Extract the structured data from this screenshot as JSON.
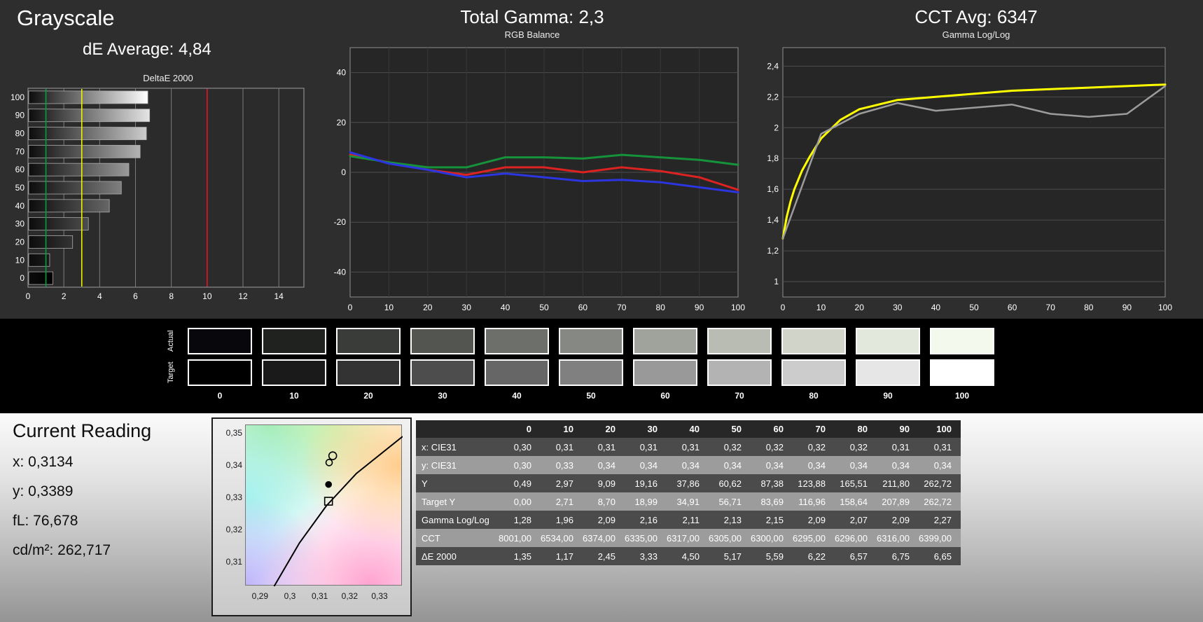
{
  "header": {
    "grayscale_title": "Grayscale",
    "de_average": "dE Average: 4,84",
    "total_gamma": "Total Gamma: 2,3",
    "cct_avg": "CCT Avg: 6347"
  },
  "chart_data": [
    {
      "id": "deltae",
      "type": "bar",
      "title": "DeltaE 2000",
      "orientation": "horizontal",
      "categories": [
        100,
        90,
        80,
        70,
        60,
        50,
        40,
        30,
        20,
        10,
        0
      ],
      "values": [
        6.65,
        6.75,
        6.57,
        6.22,
        5.59,
        5.17,
        4.5,
        3.33,
        2.45,
        1.17,
        1.35
      ],
      "xlim": [
        0,
        15.4
      ],
      "xticks": [
        0,
        2,
        4,
        6,
        8,
        10,
        12,
        14
      ],
      "ref_lines": [
        {
          "name": "good",
          "value": 1,
          "color": "#00a33c"
        },
        {
          "name": "warning",
          "value": 3,
          "color": "#f2f200"
        },
        {
          "name": "bad",
          "value": 10,
          "color": "#e81123"
        }
      ]
    },
    {
      "id": "rgb_balance",
      "type": "line",
      "title": "RGB Balance",
      "x": [
        0,
        10,
        20,
        30,
        40,
        50,
        60,
        70,
        80,
        90,
        100
      ],
      "xticks": [
        0,
        10,
        20,
        30,
        40,
        50,
        60,
        70,
        80,
        90,
        100
      ],
      "ylim": [
        -50,
        50
      ],
      "yticks": [
        -40,
        -20,
        0,
        20,
        40
      ],
      "series": [
        {
          "name": "red",
          "color": "#dd2222",
          "width": 3,
          "values": [
            7,
            4,
            1,
            -1,
            2,
            2,
            0,
            2,
            0.5,
            -2,
            -7
          ]
        },
        {
          "name": "green",
          "color": "#15923a",
          "width": 3,
          "values": [
            6.5,
            4,
            2,
            2,
            6,
            6,
            5.5,
            7,
            6,
            5,
            3
          ]
        },
        {
          "name": "blue",
          "color": "#2b35e0",
          "width": 3,
          "values": [
            8,
            3.5,
            1,
            -2,
            -0.5,
            -2,
            -3.5,
            -3,
            -4,
            -6,
            -8
          ]
        }
      ]
    },
    {
      "id": "gamma_loglog",
      "type": "line",
      "title": "Gamma Log/Log",
      "xticks": [
        0,
        10,
        20,
        30,
        40,
        50,
        60,
        70,
        80,
        90,
        100
      ],
      "ylim": [
        0.9,
        2.52
      ],
      "yticks": [
        1,
        1.2,
        1.4,
        1.6,
        1.8,
        2,
        2.2,
        2.4
      ],
      "ytick_labels": [
        "1",
        "1,2",
        "1,4",
        "1,6",
        "1,8",
        "2",
        "2,2",
        "2,4"
      ],
      "series": [
        {
          "name": "target",
          "color": "#ffff00",
          "width": 3,
          "x": [
            0,
            1,
            2,
            3,
            5,
            7,
            10,
            15,
            20,
            30,
            40,
            50,
            60,
            70,
            80,
            90,
            100
          ],
          "values": [
            1.28,
            1.42,
            1.52,
            1.6,
            1.72,
            1.81,
            1.93,
            2.05,
            2.12,
            2.18,
            2.2,
            2.22,
            2.24,
            2.25,
            2.26,
            2.27,
            2.28
          ]
        },
        {
          "name": "measured",
          "color": "#9c9c9c",
          "width": 2.5,
          "x": [
            0,
            10,
            20,
            30,
            40,
            50,
            60,
            70,
            80,
            90,
            100
          ],
          "values": [
            1.28,
            1.96,
            2.09,
            2.16,
            2.11,
            2.13,
            2.15,
            2.09,
            2.07,
            2.09,
            2.27
          ]
        }
      ]
    }
  ],
  "swatches": {
    "row_labels": [
      "Actual",
      "Target"
    ],
    "levels": [
      "0",
      "10",
      "20",
      "30",
      "40",
      "50",
      "60",
      "70",
      "80",
      "90",
      "100"
    ],
    "actual_colors": [
      "#07070c",
      "#202220",
      "#393c38",
      "#525550",
      "#6c6f6a",
      "#868983",
      "#a0a39c",
      "#b9bcb3",
      "#d1d5c9",
      "#e3e8dc",
      "#f3f9ec"
    ],
    "target_colors": [
      "#000000",
      "#1a1a1a",
      "#333333",
      "#4d4d4d",
      "#666666",
      "#808080",
      "#999999",
      "#b3b3b3",
      "#cccccc",
      "#e6e6e6",
      "#ffffff"
    ]
  },
  "current_reading": {
    "title": "Current Reading",
    "lines": [
      "x: 0,3134",
      "y: 0,3389",
      "fL: 76,678",
      "cd/m²: 262,717"
    ]
  },
  "cie_chart": {
    "xticks": [
      "0,29",
      "0,3",
      "0,31",
      "0,32",
      "0,33"
    ],
    "xtick_values": [
      0.29,
      0.3,
      0.31,
      0.32,
      0.33
    ],
    "yticks": [
      "0,35",
      "0,34",
      "0,33",
      "0,32",
      "0,31"
    ],
    "ytick_values": [
      0.35,
      0.34,
      0.33,
      0.32,
      0.31
    ],
    "xlim": [
      0.285,
      0.3375
    ],
    "ylim": [
      0.3025,
      0.3525
    ],
    "locus": [
      [
        0.2945,
        0.3025
      ],
      [
        0.303,
        0.316
      ],
      [
        0.312,
        0.3275
      ],
      [
        0.322,
        0.3375
      ],
      [
        0.3375,
        0.349
      ]
    ],
    "markers": [
      {
        "shape": "circle",
        "x": 0.3141,
        "y": 0.343,
        "r": 5.5,
        "filled": false
      },
      {
        "shape": "circle",
        "x": 0.3129,
        "y": 0.3409,
        "r": 4.5,
        "filled": false
      },
      {
        "shape": "circle",
        "x": 0.3127,
        "y": 0.3341,
        "r": 4,
        "filled": true
      },
      {
        "shape": "square",
        "x": 0.3127,
        "y": 0.3289,
        "r": 5.5,
        "filled": false
      }
    ]
  },
  "table": {
    "columns": [
      "0",
      "10",
      "20",
      "30",
      "40",
      "50",
      "60",
      "70",
      "80",
      "90",
      "100"
    ],
    "rows": [
      {
        "label": "x: CIE31",
        "values": [
          "0,30",
          "0,31",
          "0,31",
          "0,31",
          "0,31",
          "0,32",
          "0,32",
          "0,32",
          "0,32",
          "0,31",
          "0,31"
        ]
      },
      {
        "label": "y: CIE31",
        "values": [
          "0,30",
          "0,33",
          "0,34",
          "0,34",
          "0,34",
          "0,34",
          "0,34",
          "0,34",
          "0,34",
          "0,34",
          "0,34"
        ]
      },
      {
        "label": "Y",
        "values": [
          "0,49",
          "2,97",
          "9,09",
          "19,16",
          "37,86",
          "60,62",
          "87,38",
          "123,88",
          "165,51",
          "211,80",
          "262,72"
        ]
      },
      {
        "label": "Target Y",
        "values": [
          "0,00",
          "2,71",
          "8,70",
          "18,99",
          "34,91",
          "56,71",
          "83,69",
          "116,96",
          "158,64",
          "207,89",
          "262,72"
        ]
      },
      {
        "label": "Gamma Log/Log",
        "values": [
          "1,28",
          "1,96",
          "2,09",
          "2,16",
          "2,11",
          "2,13",
          "2,15",
          "2,09",
          "2,07",
          "2,09",
          "2,27"
        ]
      },
      {
        "label": "CCT",
        "values": [
          "8001,00",
          "6534,00",
          "6374,00",
          "6335,00",
          "6317,00",
          "6305,00",
          "6300,00",
          "6295,00",
          "6296,00",
          "6316,00",
          "6399,00"
        ]
      },
      {
        "label": "ΔE 2000",
        "values": [
          "1,35",
          "1,17",
          "2,45",
          "3,33",
          "4,50",
          "5,17",
          "5,59",
          "6,22",
          "6,57",
          "6,75",
          "6,65"
        ]
      }
    ]
  }
}
